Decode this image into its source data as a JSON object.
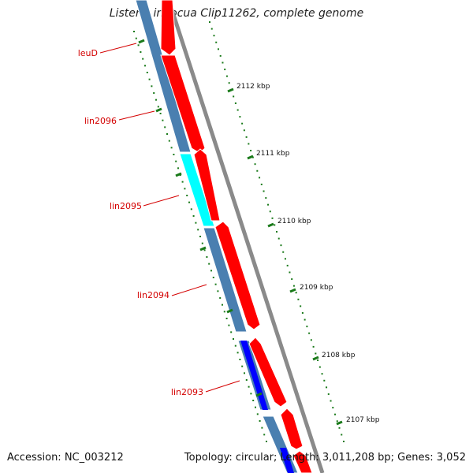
{
  "title": "Listeria innocua Clip11262, complete genome",
  "accession": "Accession: NC_003212",
  "summary": "Topology: circular; Length: 3,011,208 bp; Genes: 3,052",
  "colors": {
    "forward_cds": "#ff0000",
    "reverse_cds": "#4682b4",
    "highlight_cyan": "#00ffff",
    "highlight_blue": "#0000ff",
    "backbone": "#808080",
    "tick": "#006400",
    "label": "#d40000"
  },
  "gene_labels": [
    "leuD",
    "lin2096",
    "lin2095",
    "lin2094",
    "lin2093"
  ],
  "kbp_ticks": [
    "2112 kbp",
    "2111 kbp",
    "2110 kbp",
    "2109 kbp",
    "2108 kbp",
    "2107 kbp"
  ]
}
